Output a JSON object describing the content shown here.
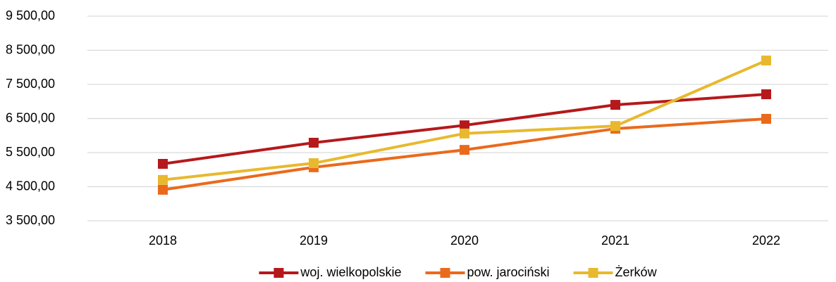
{
  "chart_data": {
    "type": "line",
    "categories": [
      "2018",
      "2019",
      "2020",
      "2021",
      "2022"
    ],
    "series": [
      {
        "name": "woj. wielkopolskie",
        "color": "#b5191c",
        "values": [
          5170,
          5790,
          6300,
          6900,
          7210
        ]
      },
      {
        "name": "pow. jarociński",
        "color": "#ea6a1c",
        "values": [
          4410,
          5070,
          5580,
          6200,
          6490
        ]
      },
      {
        "name": "Żerków",
        "color": "#e8b92e",
        "values": [
          4700,
          5190,
          6060,
          6280,
          8200
        ]
      }
    ],
    "ylim": [
      3500,
      9500
    ],
    "yticks": [
      {
        "value": 3500,
        "label": "3 500,00"
      },
      {
        "value": 4500,
        "label": "4 500,00"
      },
      {
        "value": 5500,
        "label": "5 500,00"
      },
      {
        "value": 6500,
        "label": "6 500,00"
      },
      {
        "value": 7500,
        "label": "7 500,00"
      },
      {
        "value": 8500,
        "label": "8 500,00"
      },
      {
        "value": 9500,
        "label": "9 500,00"
      }
    ],
    "grid": true,
    "legend": "bottom"
  }
}
